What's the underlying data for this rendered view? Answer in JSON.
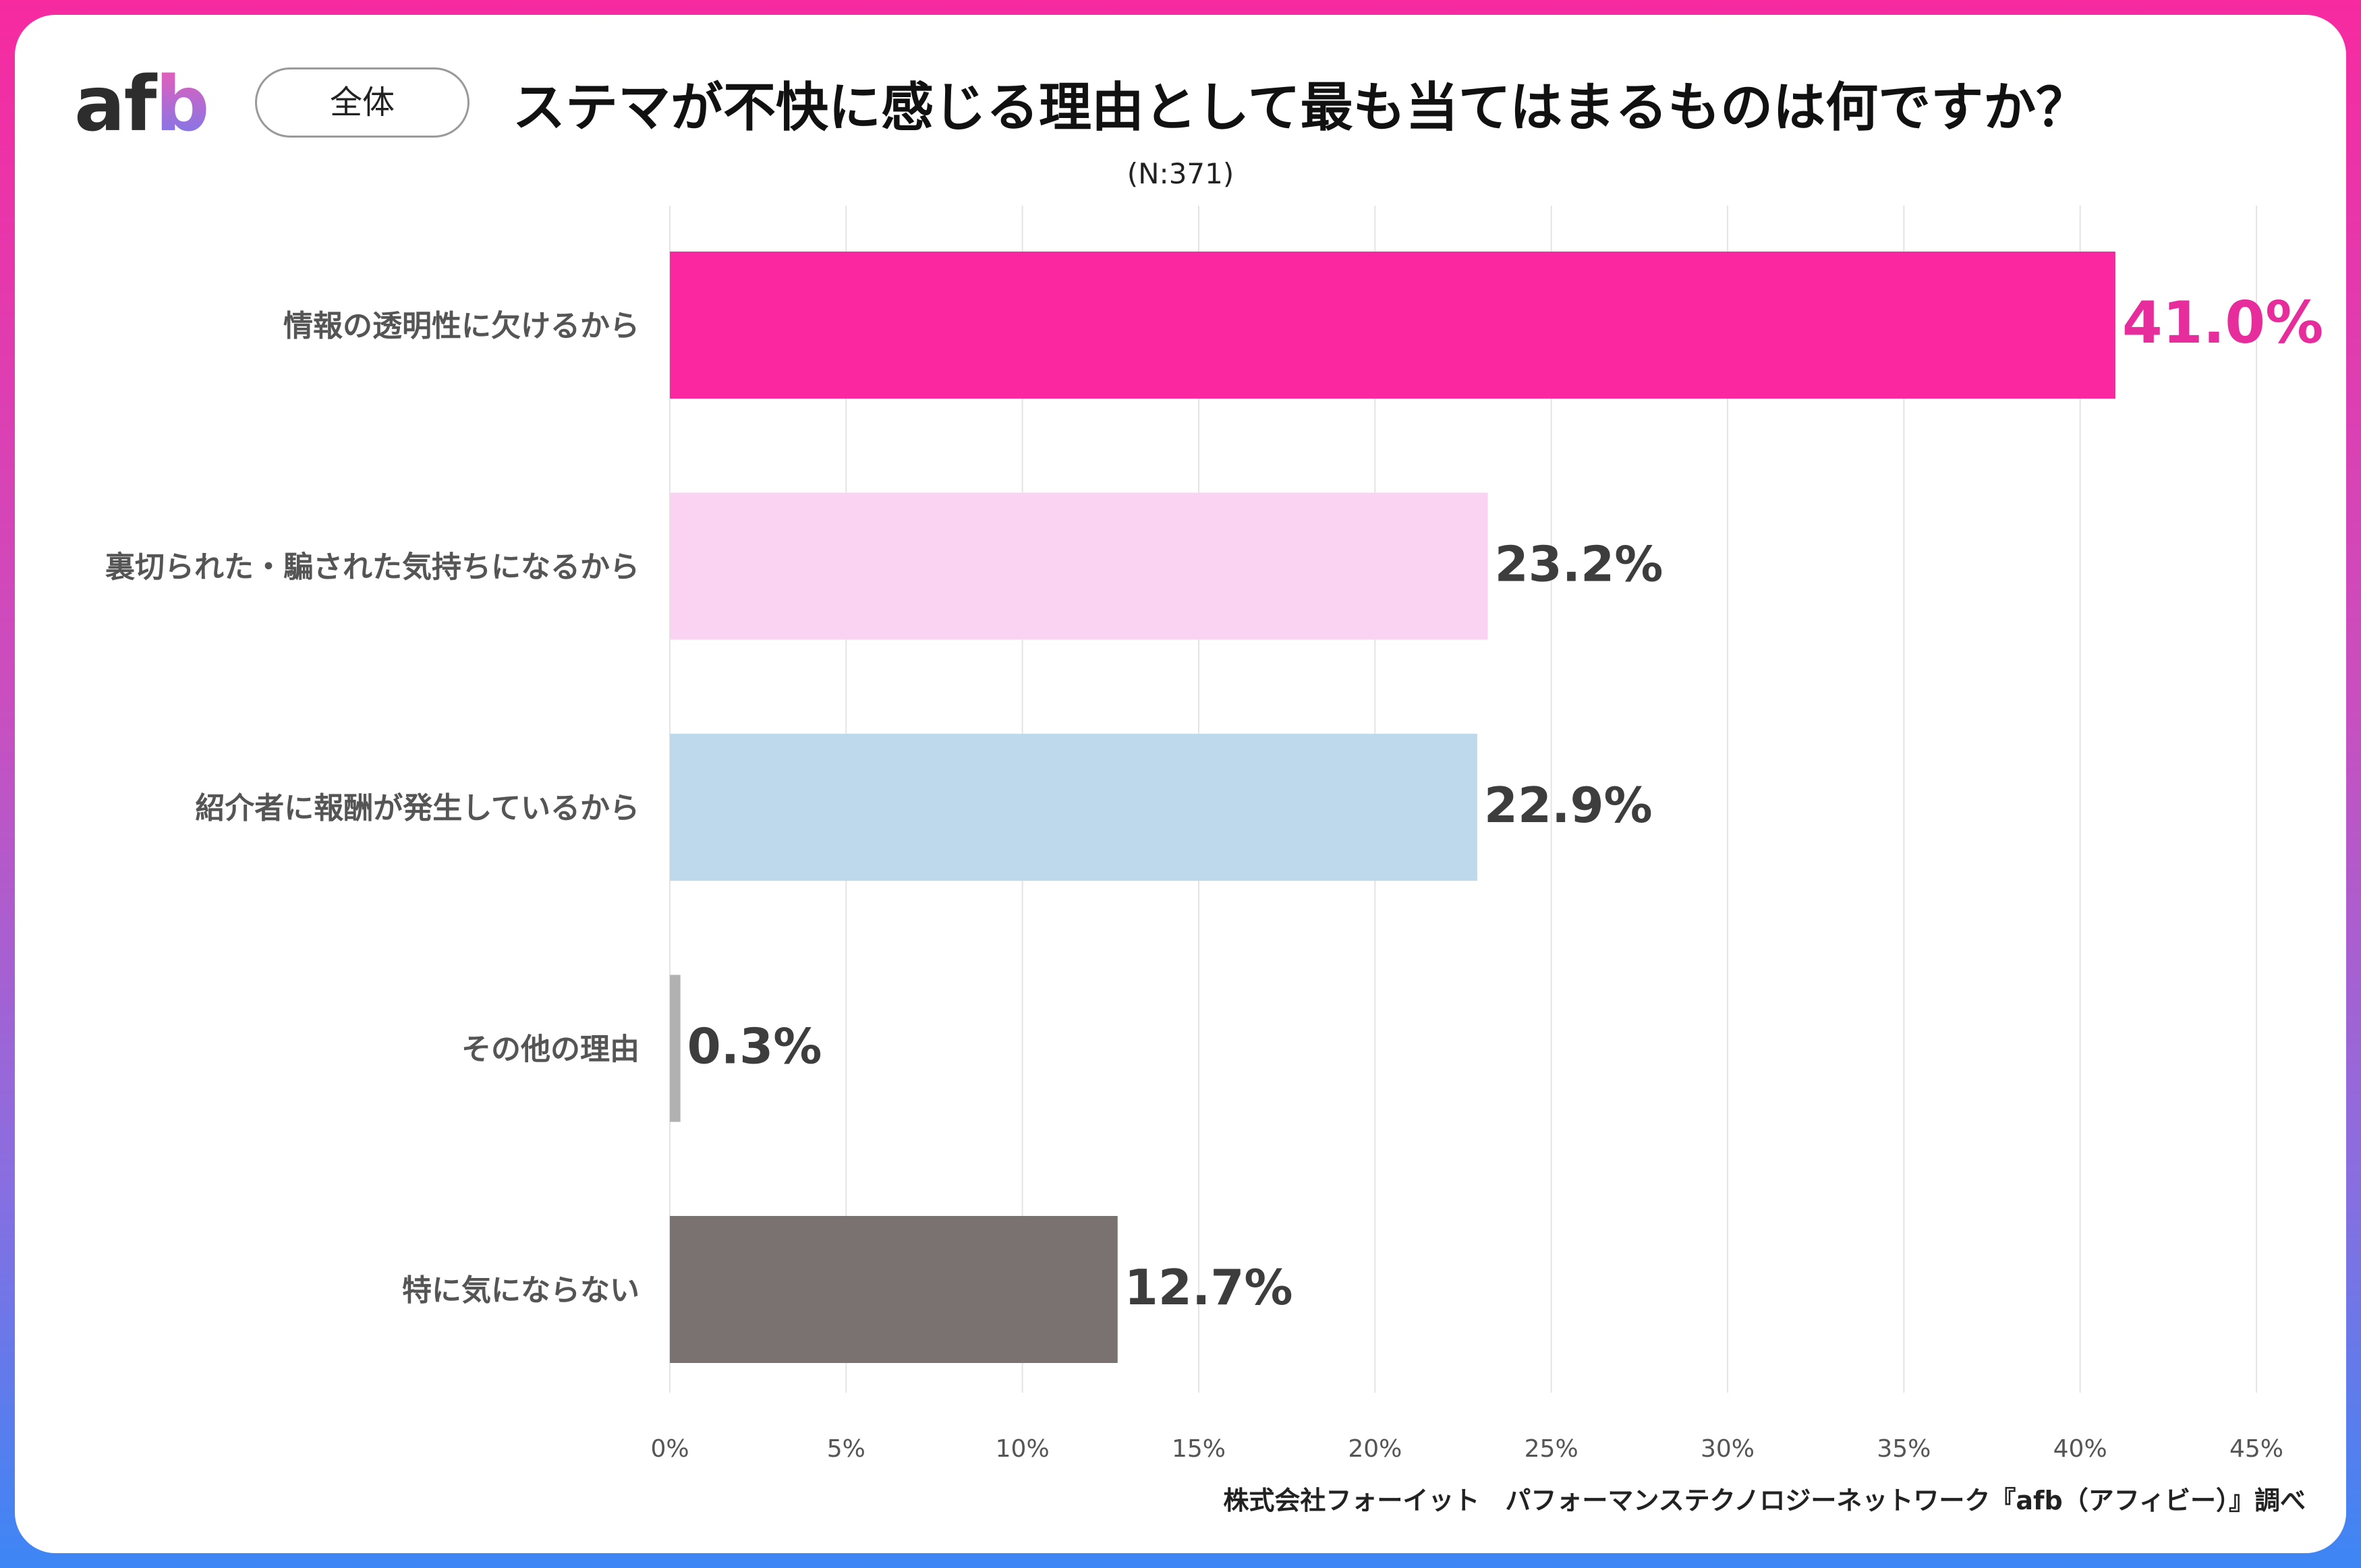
{
  "header": {
    "logo_text": "afb",
    "segment_label": "全体",
    "title": "ステマが不快に感じる理由として最も当てはまるものは何ですか？",
    "sample_size": "(N:371)"
  },
  "chart_data": {
    "type": "bar",
    "orientation": "horizontal",
    "title": "ステマが不快に感じる理由として最も当てはまるものは何ですか？",
    "subtitle": "(N:371)",
    "categories": [
      "情報の透明性に欠けるから",
      "裏切られた・騙された気持ちになるから",
      "紹介者に報酬が発生しているから",
      "その他の理由",
      "特に気にならない"
    ],
    "values": [
      41.0,
      23.2,
      22.9,
      0.3,
      12.7
    ],
    "value_labels": [
      "41.0%",
      "23.2%",
      "22.9%",
      "0.3%",
      "12.7%"
    ],
    "bar_colors": [
      "#fb27a1",
      "#fbd3f2",
      "#bed8ec",
      "#b1b1b1",
      "#7a7270"
    ],
    "label_colors": [
      "#e62d9b",
      "#3d3d3d",
      "#3d3d3d",
      "#3d3d3d",
      "#3d3d3d"
    ],
    "xlim": [
      0,
      45
    ],
    "x_ticks": [
      0,
      5,
      10,
      15,
      20,
      25,
      30,
      35,
      40,
      45
    ],
    "x_tick_labels": [
      "0%",
      "5%",
      "10%",
      "15%",
      "20%",
      "25%",
      "30%",
      "35%",
      "40%",
      "45%"
    ],
    "grid": true
  },
  "footer": {
    "source": "株式会社フォーイット　パフォーマンステクノロジーネットワーク『afb（アフィビー）』調べ"
  }
}
